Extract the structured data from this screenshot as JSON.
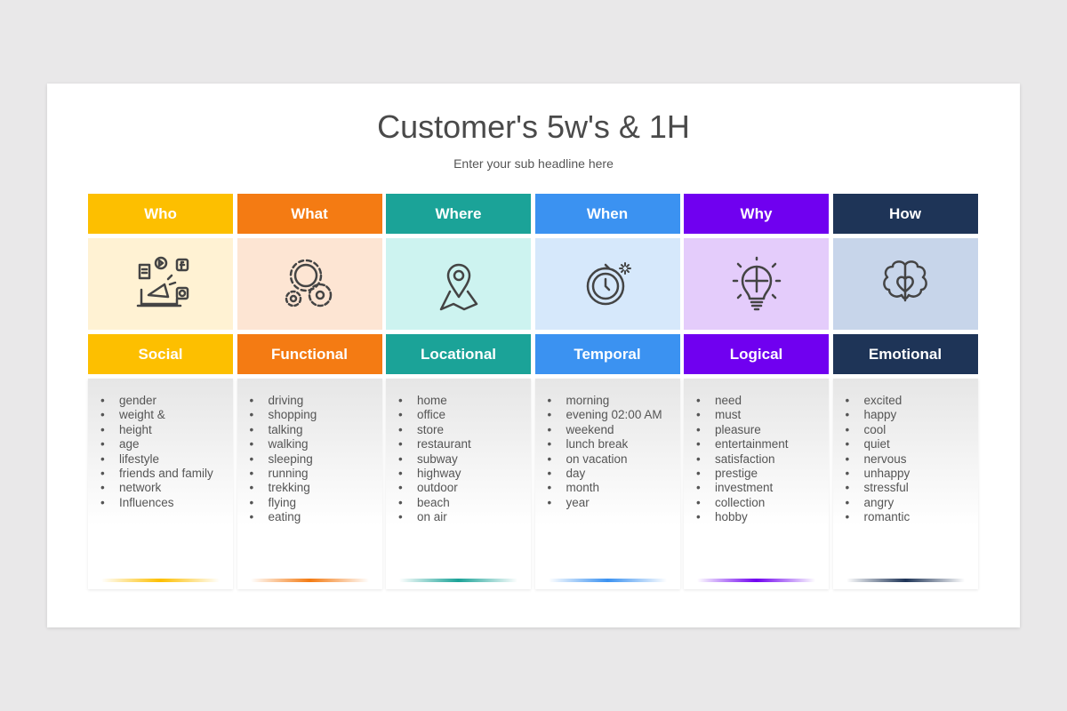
{
  "title": "Customer's 5w's & 1H",
  "subtitle": "Enter your sub headline here",
  "columns": [
    {
      "header": "Who",
      "label": "Social",
      "icon": "social-media-megaphone-icon",
      "color": "#fdbf00",
      "light": "#fff2d3",
      "items": [
        "gender",
        "weight &",
        "height",
        "age",
        "lifestyle",
        "friends and family",
        "network",
        "Influences"
      ]
    },
    {
      "header": "What",
      "label": "Functional",
      "icon": "gears-icon",
      "color": "#f47b13",
      "light": "#fde5d3",
      "items": [
        "driving",
        "shopping",
        "talking",
        "walking",
        "sleeping",
        "running",
        "trekking",
        "flying",
        "eating"
      ]
    },
    {
      "header": "Where",
      "label": "Locational",
      "icon": "map-pin-icon",
      "color": "#1ba398",
      "light": "#cdf3f0",
      "items": [
        "home",
        "office",
        "store",
        "restaurant",
        "subway",
        "highway",
        "outdoor",
        "beach",
        "on air"
      ]
    },
    {
      "header": "When",
      "label": "Temporal",
      "icon": "clock-icon",
      "color": "#3b92f1",
      "light": "#d6e8fb",
      "items": [
        "morning",
        "evening 02:00 AM",
        "weekend",
        "lunch break",
        "on vacation",
        "day",
        "month",
        "year"
      ]
    },
    {
      "header": "Why",
      "label": "Logical",
      "icon": "lightbulb-puzzle-icon",
      "color": "#7000f0",
      "light": "#e4ccfb",
      "items": [
        "need",
        "must",
        "pleasure",
        "entertainment",
        "satisfaction",
        "prestige",
        "investment",
        "collection",
        "hobby"
      ]
    },
    {
      "header": "How",
      "label": "Emotional",
      "icon": "brain-heart-icon",
      "color": "#1e3457",
      "light": "#c7d5ea",
      "items": [
        "excited",
        "happy",
        "cool",
        "quiet",
        "nervous",
        "unhappy",
        "stressful",
        "angry",
        "romantic"
      ]
    }
  ]
}
